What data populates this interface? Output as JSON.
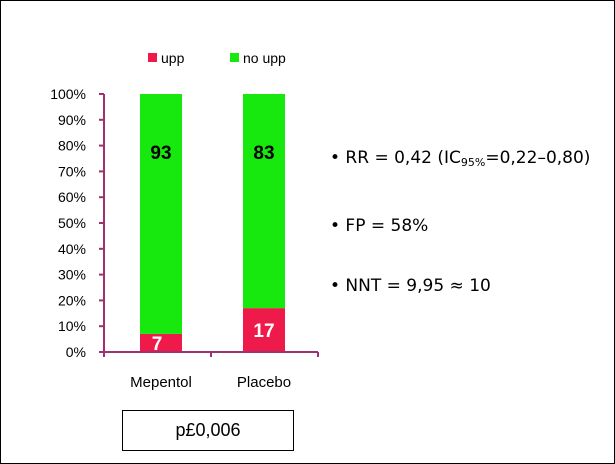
{
  "colors": {
    "upp": "#ee1a4a",
    "no_upp": "#17e80e",
    "axis": "#a03070"
  },
  "chart_data": {
    "type": "bar",
    "stacked": true,
    "percent": true,
    "categories": [
      "Mepentol",
      "Placebo"
    ],
    "series": [
      {
        "name": "upp",
        "values": [
          7,
          17
        ]
      },
      {
        "name": "no upp",
        "values": [
          93,
          83
        ]
      }
    ],
    "ylim": [
      0,
      100
    ],
    "yticks": [
      "0%",
      "10%",
      "20%",
      "30%",
      "40%",
      "50%",
      "60%",
      "70%",
      "80%",
      "90%",
      "100%"
    ],
    "legend_position": "top",
    "grid": false
  },
  "stats": {
    "rr_prefix": "• RR = 0,42 (IC",
    "rr_sub": "95%",
    "rr_suffix": "=0,22–0,80)",
    "fp": "• FP = 58%",
    "nnt": "• NNT = 9,95 ≈ 10"
  },
  "p_value": "p£0,006"
}
